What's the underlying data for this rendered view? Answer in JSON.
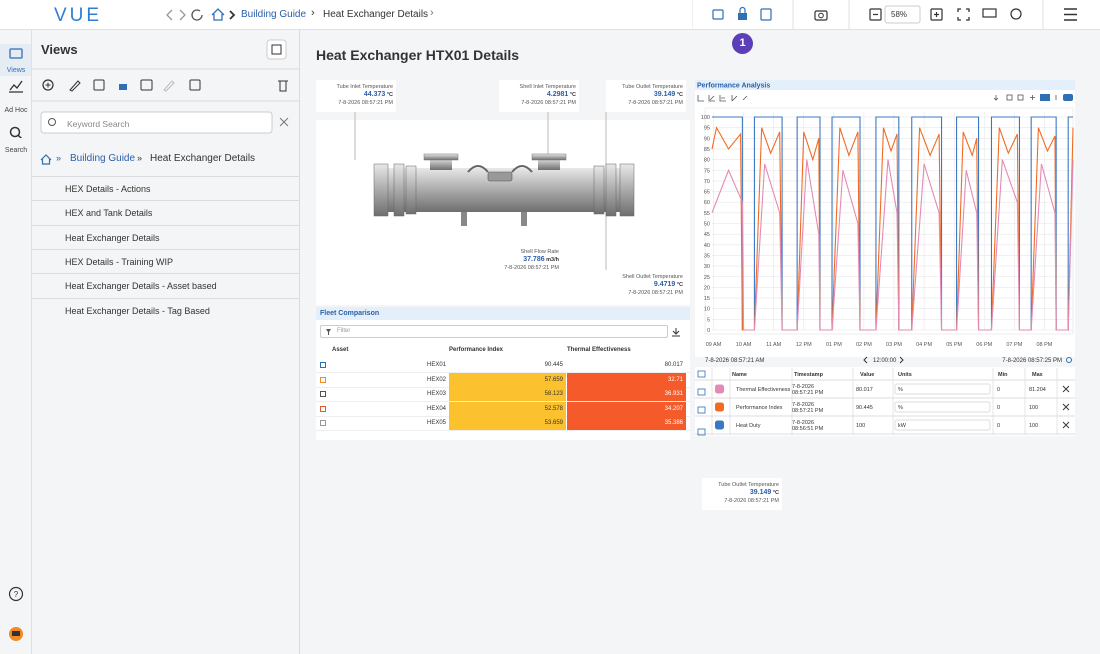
{
  "nav": {
    "logo": "VUE",
    "breadcrumb": [
      "Building Guide",
      "Heat Exchanger Details"
    ],
    "zoom": "58%",
    "badge": "1"
  },
  "rail": [
    "Views",
    "Ad Hoc",
    "Search"
  ],
  "panel": {
    "title": "Views",
    "search_placeholder": "Keyword Search",
    "breadcrumb": [
      "Building Guide",
      "Heat Exchanger Details"
    ],
    "items": [
      "HEX Details - Actions",
      "HEX and Tank Details",
      "Heat Exchanger Details",
      "HEX Details - Training WIP",
      "Heat Exchanger Details - Asset based",
      "Heat Exchanger Details - Tag Based"
    ]
  },
  "page_title": "Heat Exchanger HTX01 Details",
  "widgets": [
    {
      "name": "Tube Inlet Temperature",
      "value": 44.373,
      "unit": "°C",
      "timestamp": "7-8-2026 08:57:21 PM"
    },
    {
      "name": "Shell Inlet Temperature",
      "value": 4.2981,
      "unit": "°C",
      "timestamp": "7-8-2026 08:57:21 PM"
    },
    {
      "name": "Tube Outlet Temperature",
      "value": 39.149,
      "unit": "°C",
      "timestamp": "7-8-2026 08:57:21 PM"
    },
    {
      "name": "Shell Flow Rate",
      "value": 37.786,
      "unit": "m3/h",
      "timestamp": "7-8-2026 08:57:21 PM"
    },
    {
      "name": "Shell Outlet Temperature",
      "value": 9.4719,
      "unit": "°C",
      "timestamp": "7-8-2026 08:57:21 PM"
    },
    {
      "name": "Tube Outlet Temperature",
      "value": 39.149,
      "unit": "°C",
      "timestamp": "7-8-2026 08:57:21 PM"
    }
  ],
  "chart_data": {
    "type": "line",
    "title": "Performance Analysis",
    "xlim": [
      8.95,
      20.95
    ],
    "xticks": [
      {
        "value": 9,
        "label": "09 AM"
      },
      {
        "value": 10,
        "label": "10 AM"
      },
      {
        "value": 11,
        "label": "11 AM"
      },
      {
        "value": 12,
        "label": "12 PM"
      },
      {
        "value": 13,
        "label": "01 PM"
      },
      {
        "value": 14,
        "label": "02 PM"
      },
      {
        "value": 15,
        "label": "03 PM"
      },
      {
        "value": 16,
        "label": "04 PM"
      },
      {
        "value": 17,
        "label": "05 PM"
      },
      {
        "value": 18,
        "label": "06 PM"
      },
      {
        "value": 19,
        "label": "07 PM"
      },
      {
        "value": 20,
        "label": "08 PM"
      }
    ],
    "ylim": [
      0,
      100
    ],
    "yticks": [
      0,
      5,
      10,
      15,
      20,
      25,
      30,
      35,
      40,
      45,
      50,
      55,
      60,
      65,
      70,
      75,
      80,
      85,
      90,
      95,
      100
    ],
    "grid": true,
    "range": {
      "start": "7-8-2026 08:57:21 AM",
      "span": "12:00:00",
      "end": "7-8-2026 08:57:25 PM"
    },
    "table_headers": [
      "Name",
      "Timestamp",
      "Value",
      "Units",
      "Min",
      "Max"
    ],
    "series": [
      {
        "name": "Thermal Effectiveness",
        "color": "#e48ab6",
        "x": [
          8.95,
          9.5,
          9.96,
          10.0,
          10.36,
          10.7,
          11.2,
          11.28,
          11.78,
          12.1,
          12.5,
          12.54,
          12.94,
          13.3,
          13.8,
          13.87,
          14.4,
          14.8,
          15.1,
          15.16,
          15.59,
          16.0,
          16.5,
          16.58,
          17.08,
          17.4,
          17.75,
          17.81,
          18.24,
          18.6,
          19.1,
          19.17,
          19.56,
          19.9,
          20.35,
          20.39,
          20.79,
          20.95
        ],
        "values": [
          55,
          75,
          60,
          0,
          0,
          78,
          55,
          0,
          0,
          80,
          45,
          0,
          0,
          75,
          50,
          0,
          0,
          80,
          55,
          0,
          0,
          78,
          55,
          0,
          0,
          75,
          55,
          0,
          0,
          80,
          60,
          0,
          0,
          78,
          55,
          0,
          0,
          80
        ],
        "timestamp": "7-8-2026 08:57:21 PM",
        "value": 80.017,
        "units": "%",
        "min": 0,
        "max": 81.204
      },
      {
        "name": "Performance Index",
        "color": "#f26b22",
        "x": [
          8.95,
          9.1,
          9.5,
          9.9,
          9.96,
          10.36,
          10.6,
          10.9,
          11.2,
          11.28,
          11.78,
          12.0,
          12.3,
          12.5,
          12.54,
          12.94,
          13.2,
          13.5,
          13.8,
          13.87,
          14.4,
          14.65,
          14.9,
          15.1,
          15.16,
          15.59,
          15.85,
          16.2,
          16.5,
          16.58,
          17.08,
          17.3,
          17.6,
          17.75,
          17.81,
          18.24,
          18.5,
          18.8,
          19.1,
          19.17,
          19.56,
          19.8,
          20.1,
          20.35,
          20.39,
          20.79,
          20.95
        ],
        "values": [
          85,
          95,
          85,
          92,
          0,
          0,
          95,
          83,
          93,
          0,
          0,
          93,
          80,
          90,
          0,
          0,
          95,
          82,
          93,
          0,
          0,
          95,
          84,
          92,
          0,
          0,
          95,
          82,
          92,
          0,
          0,
          93,
          82,
          90,
          0,
          0,
          95,
          83,
          92,
          0,
          0,
          95,
          84,
          91,
          0,
          0,
          95
        ],
        "timestamp": "7-8-2026 08:57:21 PM",
        "value": 90.445,
        "units": "%",
        "min": 0,
        "max": 100
      },
      {
        "name": "Heat Duty",
        "color": "#3b78c3",
        "x": [
          8.95,
          9.96,
          9.96,
          10.36,
          10.36,
          11.28,
          11.28,
          11.78,
          11.78,
          12.54,
          12.54,
          12.94,
          12.94,
          13.87,
          13.87,
          14.4,
          14.4,
          15.16,
          15.16,
          15.59,
          15.59,
          16.58,
          16.58,
          17.08,
          17.08,
          17.81,
          17.81,
          18.24,
          18.24,
          19.17,
          19.17,
          19.56,
          19.56,
          20.39,
          20.39,
          20.79,
          20.79,
          20.95
        ],
        "values": [
          100,
          100,
          0,
          0,
          100,
          100,
          0,
          0,
          100,
          100,
          0,
          0,
          100,
          100,
          0,
          0,
          100,
          100,
          0,
          0,
          100,
          100,
          0,
          0,
          100,
          100,
          0,
          0,
          100,
          100,
          0,
          0,
          100,
          100,
          0,
          0,
          100,
          100
        ],
        "timestamp": "7-8-2026 08:56:51 PM",
        "value": 100,
        "units": "kW",
        "min": 0,
        "max": 100
      }
    ]
  },
  "fleet": {
    "title": "Fleet Comparison",
    "filter_placeholder": "Filter",
    "headers": [
      "Asset",
      "Performance Index",
      "Thermal Effectiveness"
    ],
    "rows": [
      [
        "HEX01",
        90.445,
        80.017
      ],
      [
        "HEX02",
        57.659,
        32.71
      ],
      [
        "HEX03",
        58.123,
        36.931
      ],
      [
        "HEX04",
        52.578,
        34.207
      ],
      [
        "HEX05",
        53.659,
        35.386
      ]
    ]
  }
}
